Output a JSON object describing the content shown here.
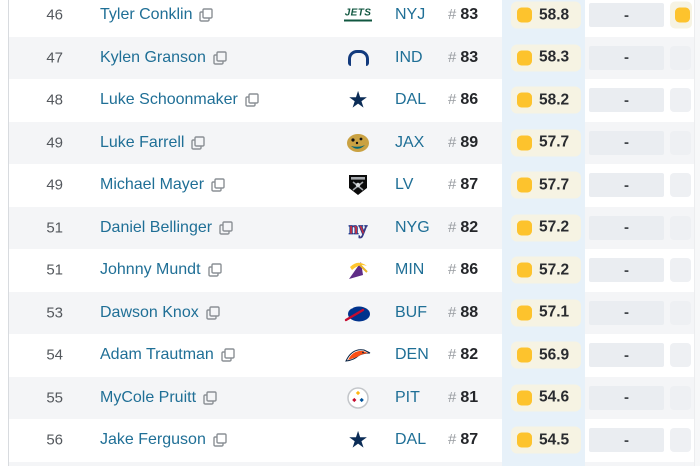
{
  "page": {
    "background": "#ffffff"
  },
  "colors": {
    "link_teal": "#1f6f96",
    "rank_text": "#54585d",
    "value_text": "#24262a",
    "alt_row_bg": "#f4f5f7",
    "grade_cell_bg": "#f6f3e3",
    "grade_square_yellow": "#fdc32d",
    "grade_column_bg": "#e7f1f9",
    "empty_cell_bg": "#eaedf1",
    "empty_cell_bg_right": "#eef0f3",
    "left_border": "#d8dbdf",
    "icon_gray": "#8b9095"
  },
  "table": {
    "jersey_prefix": "#",
    "empty_value": "-",
    "rows": [
      {
        "rank": "46",
        "player": "Tyler Conklin",
        "team": "NYJ",
        "team_logo": "jets-logo",
        "jersey": "83",
        "grade": "58.8",
        "next": "-",
        "next_cell": "grade-partial"
      },
      {
        "rank": "47",
        "player": "Kylen Granson",
        "team": "IND",
        "team_logo": "colts-logo",
        "jersey": "83",
        "grade": "58.3",
        "next": "-",
        "next_cell": "empty-partial"
      },
      {
        "rank": "48",
        "player": "Luke Schoonmaker",
        "team": "DAL",
        "team_logo": "cowboys-logo",
        "jersey": "86",
        "grade": "58.2",
        "next": "-",
        "next_cell": "empty-partial"
      },
      {
        "rank": "49",
        "player": "Luke Farrell",
        "team": "JAX",
        "team_logo": "jaguars-logo",
        "jersey": "89",
        "grade": "57.7",
        "next": "-",
        "next_cell": "empty-partial"
      },
      {
        "rank": "49",
        "player": "Michael Mayer",
        "team": "LV",
        "team_logo": "raiders-logo",
        "jersey": "87",
        "grade": "57.7",
        "next": "-",
        "next_cell": "empty-partial"
      },
      {
        "rank": "51",
        "player": "Daniel Bellinger",
        "team": "NYG",
        "team_logo": "giants-logo",
        "jersey": "82",
        "grade": "57.2",
        "next": "-",
        "next_cell": "empty-partial"
      },
      {
        "rank": "51",
        "player": "Johnny Mundt",
        "team": "MIN",
        "team_logo": "vikings-logo",
        "jersey": "86",
        "grade": "57.2",
        "next": "-",
        "next_cell": "empty-partial"
      },
      {
        "rank": "53",
        "player": "Dawson Knox",
        "team": "BUF",
        "team_logo": "bills-logo",
        "jersey": "88",
        "grade": "57.1",
        "next": "-",
        "next_cell": "empty-partial"
      },
      {
        "rank": "54",
        "player": "Adam Trautman",
        "team": "DEN",
        "team_logo": "broncos-logo",
        "jersey": "82",
        "grade": "56.9",
        "next": "-",
        "next_cell": "empty-partial"
      },
      {
        "rank": "55",
        "player": "MyCole Pruitt",
        "team": "PIT",
        "team_logo": "steelers-logo",
        "jersey": "81",
        "grade": "54.6",
        "next": "-",
        "next_cell": "empty-partial"
      },
      {
        "rank": "56",
        "player": "Jake Ferguson",
        "team": "DAL",
        "team_logo": "cowboys-logo",
        "jersey": "87",
        "grade": "54.5",
        "next": "-",
        "next_cell": "empty-partial"
      }
    ]
  }
}
